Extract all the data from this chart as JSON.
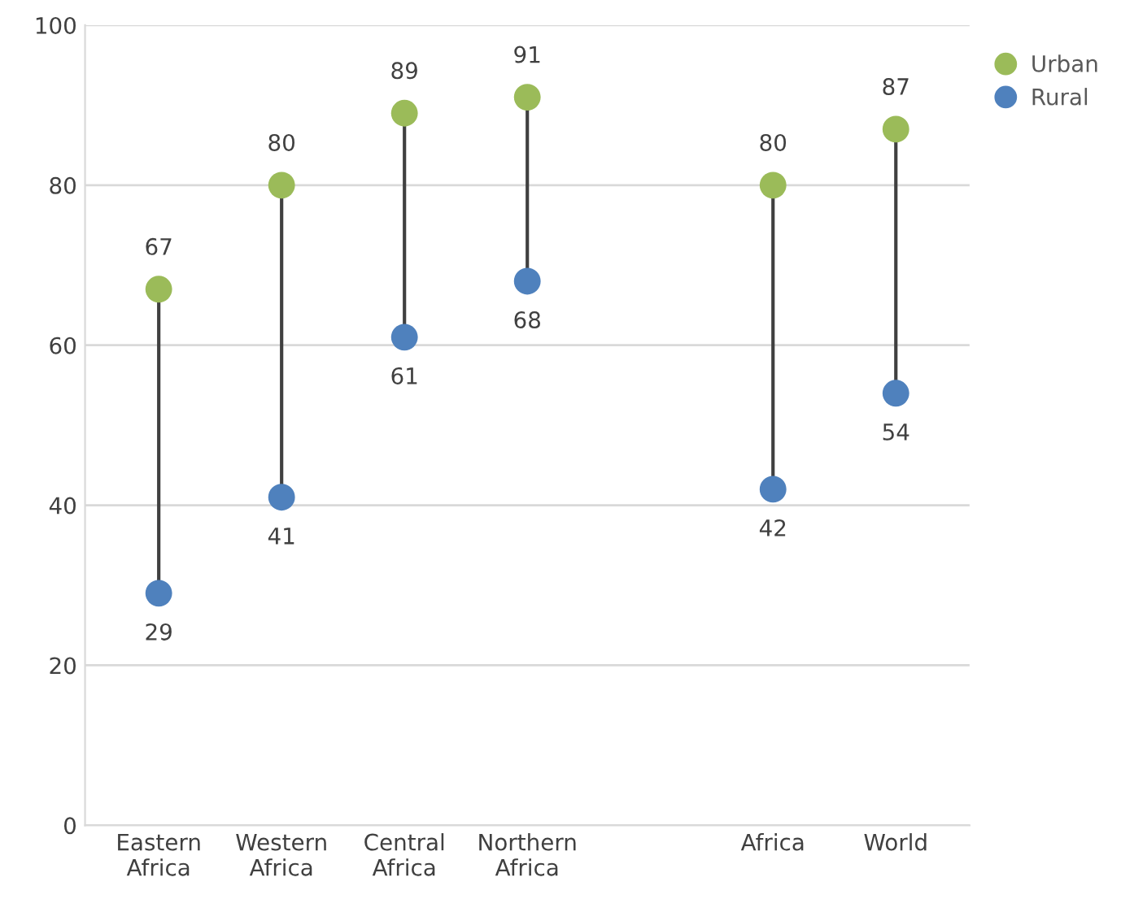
{
  "chart_data": {
    "type": "scatter",
    "categories": [
      "Eastern\nAfrica",
      "Western\nAfrica",
      "Central\nAfrica",
      "Northern\nAfrica",
      null,
      "Africa",
      "World"
    ],
    "series": [
      {
        "name": "Urban",
        "color": "#9bbb59",
        "values": [
          67,
          80,
          89,
          91,
          null,
          80,
          87
        ]
      },
      {
        "name": "Rural",
        "color": "#4f81bd",
        "values": [
          29,
          41,
          61,
          68,
          null,
          42,
          54
        ]
      }
    ],
    "ylim": [
      0,
      100
    ],
    "yticks": [
      0,
      20,
      40,
      60,
      80,
      100
    ],
    "grid": "y",
    "legend": "top right",
    "marker": "circle",
    "data_labels": true
  }
}
